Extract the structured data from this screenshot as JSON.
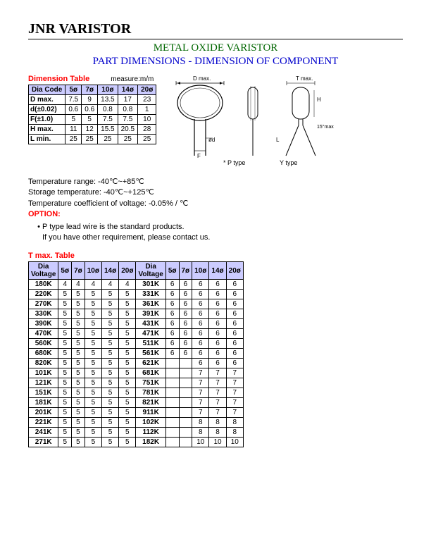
{
  "header": {
    "main_title": "JNR VARISTOR",
    "sub_title": "METAL OXIDE VARISTOR",
    "dim_title": "PART DIMENSIONS - DIMENSION OF COMPONENT"
  },
  "dimension_table": {
    "label": "Dimension Table",
    "measure": "measure:m/m",
    "header_label": "Dia Code",
    "columns": [
      "5ø",
      "7ø",
      "10ø",
      "14ø",
      "20ø"
    ],
    "rows": [
      {
        "label": "D max.",
        "vals": [
          "7.5",
          "9",
          "13.5",
          "17",
          "23"
        ]
      },
      {
        "label": "d(±0.02)",
        "vals": [
          "0.6",
          "0.6",
          "0.8",
          "0.8",
          "1"
        ]
      },
      {
        "label": "F(±1.0)",
        "vals": [
          "5",
          "5",
          "7.5",
          "7.5",
          "10"
        ]
      },
      {
        "label": "H max.",
        "vals": [
          "11",
          "12",
          "15.5",
          "20.5",
          "28"
        ]
      },
      {
        "label": "L min.",
        "vals": [
          "25",
          "25",
          "25",
          "25",
          "25"
        ]
      }
    ]
  },
  "diagram": {
    "d_max": "D max.",
    "t_max": "T max.",
    "p_type": "* P type",
    "y_type": "Y type",
    "angle": "15°max"
  },
  "notes": {
    "temp_range": "Temperature range: -40℃~+85℃",
    "storage_temp": "Storage temperature: -40℃~+125℃",
    "temp_coeff": "Temperature coefficient of voltage: -0.05%  / ℃",
    "option_label": "OPTION:",
    "option_line1": "P type lead wire is the standard products.",
    "option_line2": "If you have other requirement, please contact us."
  },
  "tmax_table": {
    "label": "T max. Table",
    "header_label": "Dia Voltage",
    "columns": [
      "5ø",
      "7ø",
      "10ø",
      "14ø",
      "20ø"
    ],
    "left_rows": [
      {
        "v": "180K",
        "vals": [
          "4",
          "4",
          "4",
          "4",
          "4"
        ]
      },
      {
        "v": "220K",
        "vals": [
          "5",
          "5",
          "5",
          "5",
          "5"
        ]
      },
      {
        "v": "270K",
        "vals": [
          "5",
          "5",
          "5",
          "5",
          "5"
        ]
      },
      {
        "v": "330K",
        "vals": [
          "5",
          "5",
          "5",
          "5",
          "5"
        ]
      },
      {
        "v": "390K",
        "vals": [
          "5",
          "5",
          "5",
          "5",
          "5"
        ]
      },
      {
        "v": "470K",
        "vals": [
          "5",
          "5",
          "5",
          "5",
          "5"
        ]
      },
      {
        "v": "560K",
        "vals": [
          "5",
          "5",
          "5",
          "5",
          "5"
        ]
      },
      {
        "v": "680K",
        "vals": [
          "5",
          "5",
          "5",
          "5",
          "5"
        ]
      },
      {
        "v": "820K",
        "vals": [
          "5",
          "5",
          "5",
          "5",
          "5"
        ]
      },
      {
        "v": "101K",
        "vals": [
          "5",
          "5",
          "5",
          "5",
          "5"
        ]
      },
      {
        "v": "121K",
        "vals": [
          "5",
          "5",
          "5",
          "5",
          "5"
        ]
      },
      {
        "v": "151K",
        "vals": [
          "5",
          "5",
          "5",
          "5",
          "5"
        ]
      },
      {
        "v": "181K",
        "vals": [
          "5",
          "5",
          "5",
          "5",
          "5"
        ]
      },
      {
        "v": "201K",
        "vals": [
          "5",
          "5",
          "5",
          "5",
          "5"
        ]
      },
      {
        "v": "221K",
        "vals": [
          "5",
          "5",
          "5",
          "5",
          "5"
        ]
      },
      {
        "v": "241K",
        "vals": [
          "5",
          "5",
          "5",
          "5",
          "5"
        ]
      },
      {
        "v": "271K",
        "vals": [
          "5",
          "5",
          "5",
          "5",
          "5"
        ]
      }
    ],
    "right_rows": [
      {
        "v": "301K",
        "vals": [
          "6",
          "6",
          "6",
          "6",
          "6"
        ]
      },
      {
        "v": "331K",
        "vals": [
          "6",
          "6",
          "6",
          "6",
          "6"
        ]
      },
      {
        "v": "361K",
        "vals": [
          "6",
          "6",
          "6",
          "6",
          "6"
        ]
      },
      {
        "v": "391K",
        "vals": [
          "6",
          "6",
          "6",
          "6",
          "6"
        ]
      },
      {
        "v": "431K",
        "vals": [
          "6",
          "6",
          "6",
          "6",
          "6"
        ]
      },
      {
        "v": "471K",
        "vals": [
          "6",
          "6",
          "6",
          "6",
          "6"
        ]
      },
      {
        "v": "511K",
        "vals": [
          "6",
          "6",
          "6",
          "6",
          "6"
        ]
      },
      {
        "v": "561K",
        "vals": [
          "6",
          "6",
          "6",
          "6",
          "6"
        ]
      },
      {
        "v": "621K",
        "vals": [
          "",
          "",
          "6",
          "6",
          "6"
        ]
      },
      {
        "v": "681K",
        "vals": [
          "",
          "",
          "7",
          "7",
          "7"
        ]
      },
      {
        "v": "751K",
        "vals": [
          "",
          "",
          "7",
          "7",
          "7"
        ]
      },
      {
        "v": "781K",
        "vals": [
          "",
          "",
          "7",
          "7",
          "7"
        ]
      },
      {
        "v": "821K",
        "vals": [
          "",
          "",
          "7",
          "7",
          "7"
        ]
      },
      {
        "v": "911K",
        "vals": [
          "",
          "",
          "7",
          "7",
          "7"
        ]
      },
      {
        "v": "102K",
        "vals": [
          "",
          "",
          "8",
          "8",
          "8"
        ]
      },
      {
        "v": "112K",
        "vals": [
          "",
          "",
          "8",
          "8",
          "8"
        ]
      },
      {
        "v": "182K",
        "vals": [
          "",
          "",
          "10",
          "10",
          "10"
        ]
      }
    ]
  }
}
